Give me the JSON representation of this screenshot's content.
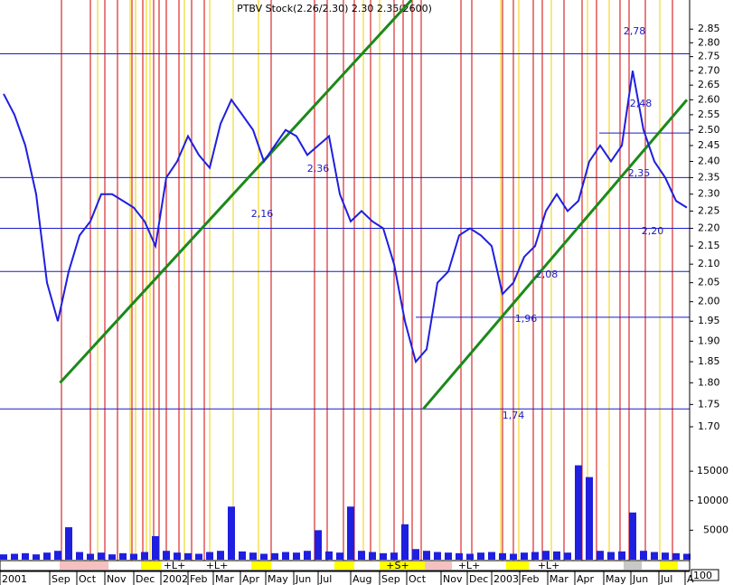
{
  "chart_data": {
    "type": "stock",
    "title": "PTBV Stock(2.26/2.30) 2.30 2.35(2600)",
    "log_scale": true,
    "ylim": [
      1.7,
      2.96
    ],
    "yticks": [
      {
        "value": 1.7,
        "label": "1.70"
      },
      1.75,
      {
        "value": 1.8,
        "label": "1.80"
      },
      1.85,
      {
        "value": 1.9,
        "label": "1.90"
      },
      1.95,
      {
        "value": 2,
        "label": "2.00"
      },
      2.05,
      {
        "value": 2.1,
        "label": "2.10"
      },
      2.15,
      {
        "value": 2.2,
        "label": "2.20"
      },
      2.25,
      {
        "value": 2.3,
        "label": "2.30"
      },
      2.35,
      {
        "value": 2.4,
        "label": "2.40"
      },
      2.45,
      {
        "value": 2.5,
        "label": "2.50"
      },
      2.55,
      {
        "value": 2.6,
        "label": "2.60"
      },
      2.65,
      {
        "value": 2.7,
        "label": "2.70"
      },
      2.75,
      {
        "value": 2.8,
        "label": "2.80"
      },
      2.85
    ],
    "series": [
      {
        "name": "Close",
        "color": "#1f1fe0",
        "values": [
          2.62,
          2.55,
          2.45,
          2.3,
          2.05,
          1.95,
          2.08,
          2.18,
          2.22,
          2.3,
          2.3,
          2.28,
          2.26,
          2.22,
          2.15,
          2.35,
          2.4,
          2.48,
          2.42,
          2.38,
          2.52,
          2.6,
          2.55,
          2.5,
          2.4,
          2.45,
          2.5,
          2.48,
          2.42,
          2.45,
          2.48,
          2.3,
          2.22,
          2.25,
          2.22,
          2.2,
          2.1,
          1.95,
          1.85,
          1.88,
          2.05,
          2.08,
          2.18,
          2.2,
          2.18,
          2.15,
          2.02,
          2.05,
          2.12,
          2.15,
          2.25,
          2.3,
          2.25,
          2.28,
          2.4,
          2.45,
          2.4,
          2.45,
          2.7,
          2.5,
          2.4,
          2.35,
          2.28,
          2.26
        ]
      }
    ],
    "levels": [
      2.76,
      2.49,
      2.35,
      2.2,
      2.08,
      1.96,
      1.74
    ],
    "trendlines": [
      {
        "color": "#1a8a1a",
        "x": [
          5.2,
          37.6
        ],
        "y": [
          1.8,
          2.96
        ]
      },
      {
        "color": "#1a8a1a",
        "x": [
          38.7,
          63
        ],
        "y": [
          1.74,
          2.6
        ]
      }
    ],
    "annotations": [
      "2,78",
      "2,48",
      "2,36",
      "2,16",
      "2,35",
      "2,20",
      "2,08",
      "1,96",
      "1,74"
    ],
    "volume": {
      "color": "#1f1fe0",
      "ylim": [
        0,
        21000
      ],
      "yticks": [
        5000,
        10000,
        15000
      ],
      "note": "100",
      "values": [
        900,
        1000,
        1100,
        900,
        1200,
        1500,
        5500,
        1300,
        1000,
        1200,
        900,
        1100,
        1000,
        1300,
        4000,
        1500,
        1200,
        1100,
        1000,
        1300,
        1500,
        9000,
        1400,
        1200,
        1000,
        1100,
        1300,
        1200,
        1500,
        5000,
        1400,
        1200,
        9000,
        1500,
        1300,
        1100,
        1200,
        6000,
        1800,
        1500,
        1300,
        1200,
        1100,
        1000,
        1200,
        1300,
        1100,
        1000,
        1200,
        1300,
        1500,
        1400,
        1200,
        16000,
        14000,
        1500,
        1300,
        1400,
        8000,
        1500,
        1300,
        1200,
        1100,
        1000
      ]
    },
    "strip_labels": [
      "+L+",
      "+L+",
      "+S+",
      "+L+",
      "+L+"
    ],
    "months": [
      "2001",
      "Sep",
      "Oct",
      "Nov",
      "Dec",
      "2002",
      "Feb",
      "Mar",
      "Apr",
      "May",
      "Jun",
      "Jul",
      "Aug",
      "Sep",
      "Oct",
      "Nov",
      "Dec",
      "2003",
      "Feb",
      "Mar",
      "Apr",
      "May",
      "Jun",
      "Jul",
      "A"
    ]
  }
}
